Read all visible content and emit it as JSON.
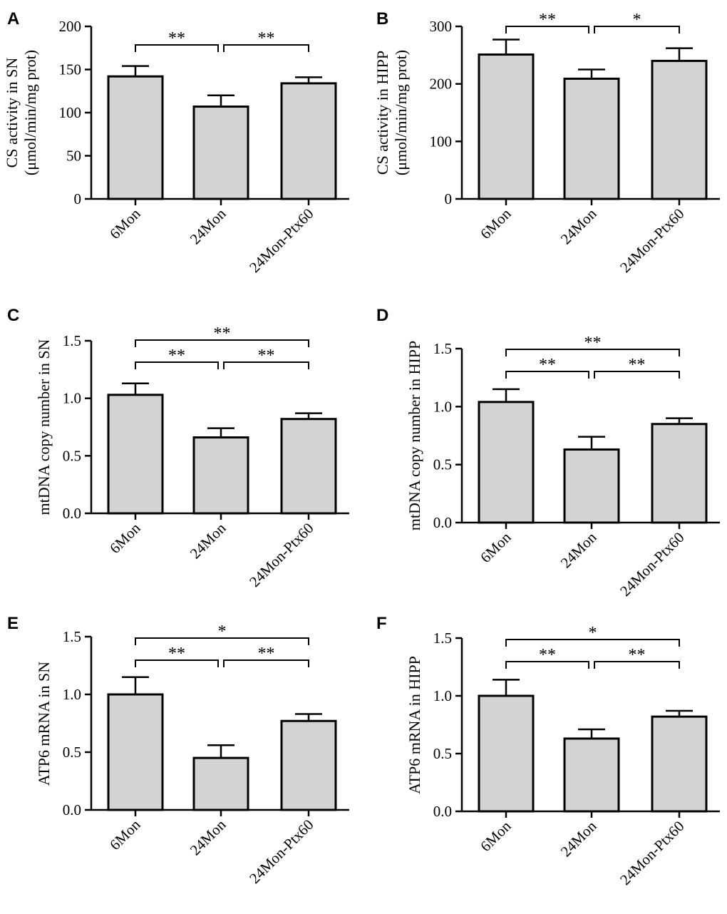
{
  "chart_data": [
    {
      "panel": "A",
      "type": "bar",
      "categories": [
        "6Mon",
        "24Mon",
        "24Mon-Ptx60"
      ],
      "values": [
        142,
        107,
        134
      ],
      "errors": [
        12,
        13,
        7
      ],
      "ylabel_lines": [
        "CS activity in SN",
        "(μmol/min/mg prot)"
      ],
      "ylim": [
        0,
        200
      ],
      "yticks": [
        0,
        50,
        100,
        150,
        200
      ],
      "ytick_labels": [
        "0",
        "50",
        "100",
        "150",
        "200"
      ],
      "significance": [
        {
          "from": 0,
          "to": 1,
          "label": "**",
          "level": 0
        },
        {
          "from": 1,
          "to": 2,
          "label": "**",
          "level": 0
        }
      ]
    },
    {
      "panel": "B",
      "type": "bar",
      "categories": [
        "6Mon",
        "24Mon",
        "24Mon-Ptx60"
      ],
      "values": [
        251,
        209,
        240
      ],
      "errors": [
        26,
        16,
        22
      ],
      "ylabel_lines": [
        "CS activity in HIPP",
        "(μmol/min/mg prot)"
      ],
      "ylim": [
        0,
        300
      ],
      "yticks": [
        0,
        100,
        200,
        300
      ],
      "ytick_labels": [
        "0",
        "100",
        "200",
        "300"
      ],
      "significance": [
        {
          "from": 0,
          "to": 1,
          "label": "**",
          "level": 0
        },
        {
          "from": 1,
          "to": 2,
          "label": "*",
          "level": 0
        }
      ]
    },
    {
      "panel": "C",
      "type": "bar",
      "categories": [
        "6Mon",
        "24Mon",
        "24Mon-Ptx60"
      ],
      "values": [
        1.03,
        0.66,
        0.82
      ],
      "errors": [
        0.1,
        0.08,
        0.05
      ],
      "ylabel_lines": [
        "mtDNA copy number in SN"
      ],
      "ylim": [
        0,
        1.5
      ],
      "yticks": [
        0,
        0.5,
        1.0,
        1.5
      ],
      "ytick_labels": [
        "0.0",
        "0.5",
        "1.0",
        "1.5"
      ],
      "significance": [
        {
          "from": 0,
          "to": 1,
          "label": "**",
          "level": 0
        },
        {
          "from": 1,
          "to": 2,
          "label": "**",
          "level": 0
        },
        {
          "from": 0,
          "to": 2,
          "label": "**",
          "level": 1
        }
      ]
    },
    {
      "panel": "D",
      "type": "bar",
      "categories": [
        "6Mon",
        "24Mon",
        "24Mon-Ptx60"
      ],
      "values": [
        1.04,
        0.63,
        0.85
      ],
      "errors": [
        0.11,
        0.11,
        0.05
      ],
      "ylabel_lines": [
        "mtDNA copy number in HIPP"
      ],
      "ylim": [
        0,
        1.5
      ],
      "yticks": [
        0,
        0.5,
        1.0,
        1.5
      ],
      "ytick_labels": [
        "0.0",
        "0.5",
        "1.0",
        "1.5"
      ],
      "significance": [
        {
          "from": 0,
          "to": 1,
          "label": "**",
          "level": 0
        },
        {
          "from": 1,
          "to": 2,
          "label": "**",
          "level": 0
        },
        {
          "from": 0,
          "to": 2,
          "label": "**",
          "level": 1
        }
      ]
    },
    {
      "panel": "E",
      "type": "bar",
      "categories": [
        "6Mon",
        "24Mon",
        "24Mon-Ptx60"
      ],
      "values": [
        1.0,
        0.45,
        0.77
      ],
      "errors": [
        0.15,
        0.11,
        0.06
      ],
      "ylabel_lines": [
        "ATP6 mRNA in SN"
      ],
      "ylim": [
        0,
        1.5
      ],
      "yticks": [
        0,
        0.5,
        1.0,
        1.5
      ],
      "ytick_labels": [
        "0.0",
        "0.5",
        "1.0",
        "1.5"
      ],
      "significance": [
        {
          "from": 0,
          "to": 1,
          "label": "**",
          "level": 0
        },
        {
          "from": 1,
          "to": 2,
          "label": "**",
          "level": 0
        },
        {
          "from": 0,
          "to": 2,
          "label": "*",
          "level": 1
        }
      ]
    },
    {
      "panel": "F",
      "type": "bar",
      "categories": [
        "6Mon",
        "24Mon",
        "24Mon-Ptx60"
      ],
      "values": [
        1.0,
        0.63,
        0.82
      ],
      "errors": [
        0.14,
        0.08,
        0.05
      ],
      "ylabel_lines": [
        "ATP6 mRNA in HIPP"
      ],
      "ylim": [
        0,
        1.5
      ],
      "yticks": [
        0,
        0.5,
        1.0,
        1.5
      ],
      "ytick_labels": [
        "0.0",
        "0.5",
        "1.0",
        "1.5"
      ],
      "significance": [
        {
          "from": 0,
          "to": 1,
          "label": "**",
          "level": 0
        },
        {
          "from": 1,
          "to": 2,
          "label": "**",
          "level": 0
        },
        {
          "from": 0,
          "to": 2,
          "label": "*",
          "level": 1
        }
      ]
    }
  ],
  "colors": {
    "bar_fill": "#d3d3d3",
    "stroke": "#000000"
  }
}
